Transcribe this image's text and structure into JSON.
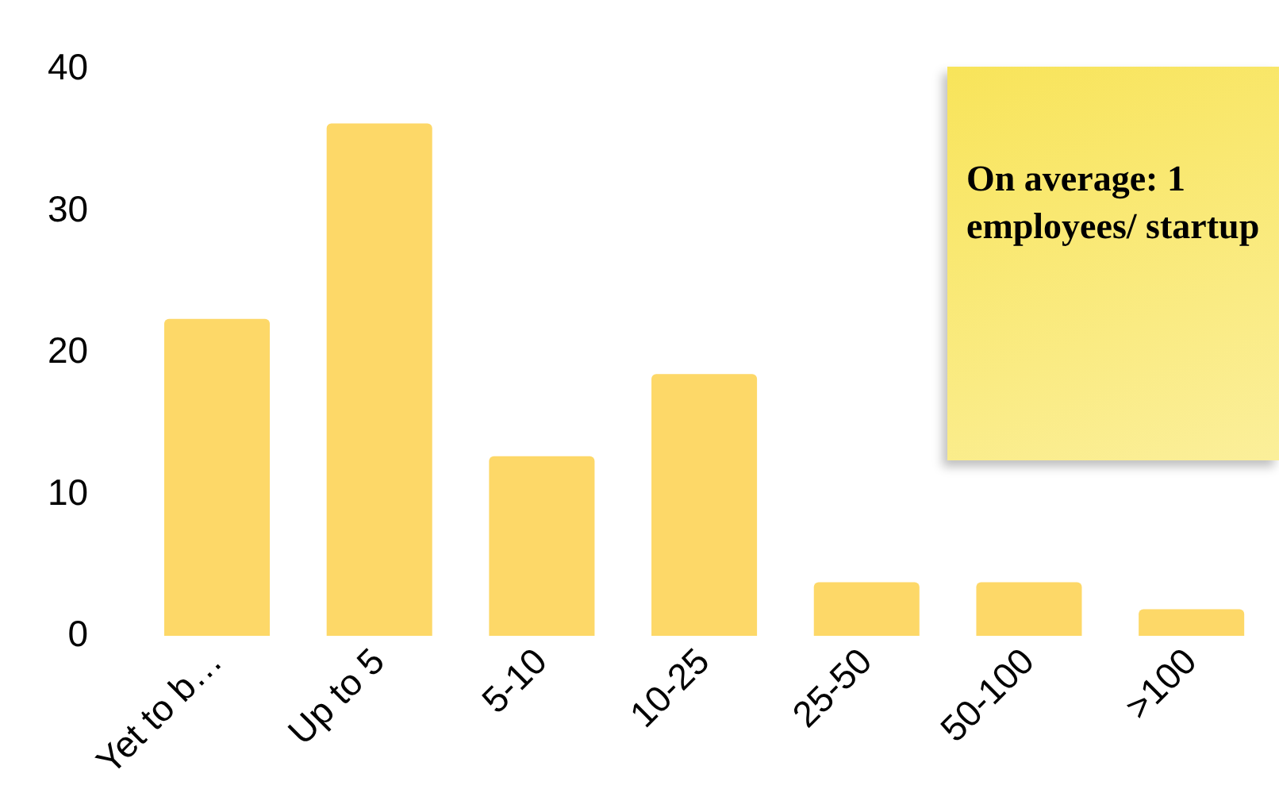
{
  "chart_data": {
    "type": "bar",
    "categories": [
      "Yet to b…",
      "Up to 5",
      "5-10",
      "10-25",
      "25-50",
      "50-100",
      ">100"
    ],
    "values": [
      22.4,
      36.2,
      12.7,
      18.5,
      3.8,
      3.8,
      1.9
    ],
    "color": "#fdd868",
    "ylim": [
      0,
      40
    ],
    "yticks": [
      0,
      10,
      20,
      30,
      40
    ],
    "grid": false,
    "legend": false,
    "annotations": [
      "On average: 1 employees/ startup"
    ]
  }
}
